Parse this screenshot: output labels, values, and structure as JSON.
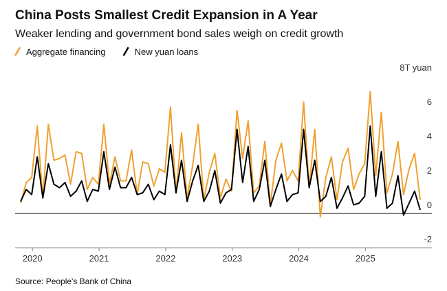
{
  "chart_data": {
    "type": "line",
    "title": "China Posts Smallest Credit Expansion in A Year",
    "subtitle": "Weaker lending and government bond sales weigh on credit growth",
    "source": "Source: People's Bank of China",
    "categories": [
      null,
      null,
      null,
      "2020",
      null,
      null,
      null,
      null,
      null,
      null,
      null,
      null,
      null,
      null,
      null,
      "2021",
      null,
      null,
      null,
      null,
      null,
      null,
      null,
      null,
      null,
      null,
      null,
      "2022",
      null,
      null,
      null,
      null,
      null,
      null,
      null,
      null,
      null,
      null,
      null,
      "2023",
      null,
      null,
      null,
      null,
      null,
      null,
      null,
      null,
      null,
      null,
      null,
      "2024",
      null,
      null,
      null,
      null,
      null,
      null,
      null,
      null,
      null,
      null,
      null,
      "2025",
      null,
      null,
      null,
      null,
      null,
      null,
      null,
      null,
      null
    ],
    "series": [
      {
        "name": "Aggregate financing",
        "color": "#f0a030",
        "values": [
          0.6,
          1.8,
          2.1,
          5.1,
          0.9,
          5.2,
          3.1,
          3.2,
          3.4,
          1.7,
          3.6,
          3.5,
          1.4,
          2.1,
          1.7,
          5.2,
          1.7,
          3.3,
          1.9,
          1.9,
          3.7,
          1.1,
          3.0,
          2.9,
          1.6,
          2.6,
          2.4,
          6.2,
          1.2,
          4.7,
          0.9,
          2.8,
          5.2,
          0.8,
          2.4,
          3.5,
          0.9,
          2.0,
          1.3,
          6.0,
          3.2,
          5.4,
          1.2,
          1.6,
          4.2,
          0.5,
          3.1,
          4.1,
          1.9,
          2.5,
          1.9,
          6.5,
          1.5,
          4.9,
          -0.2,
          2.1,
          3.3,
          0.8,
          3.0,
          3.8,
          1.4,
          2.3,
          2.9,
          7.1,
          2.2,
          5.9,
          1.2,
          2.3,
          4.2,
          1.1,
          2.6,
          3.5,
          0.8
        ]
      },
      {
        "name": "New yuan loans",
        "color": "#000000",
        "values": [
          0.7,
          1.4,
          1.1,
          3.3,
          0.9,
          2.9,
          1.7,
          1.5,
          1.8,
          1.0,
          1.3,
          1.9,
          0.7,
          1.4,
          1.3,
          3.6,
          1.4,
          2.7,
          1.5,
          1.5,
          2.1,
          1.1,
          1.2,
          1.7,
          0.8,
          1.3,
          1.1,
          4.0,
          1.2,
          3.1,
          0.7,
          1.9,
          2.8,
          0.7,
          1.3,
          2.5,
          0.6,
          1.2,
          1.4,
          4.9,
          1.8,
          3.9,
          0.7,
          1.4,
          3.1,
          0.4,
          1.4,
          2.3,
          0.7,
          1.1,
          1.2,
          4.9,
          1.5,
          3.1,
          0.7,
          1.0,
          2.1,
          0.3,
          0.9,
          1.6,
          0.5,
          0.6,
          1.0,
          5.1,
          1.0,
          3.6,
          0.3,
          0.6,
          2.2,
          -0.1,
          0.6,
          1.3,
          0.2
        ]
      }
    ],
    "ylim": [
      -2,
      8
    ],
    "yticks": [
      -2,
      0,
      2,
      4,
      6,
      {
        "value": 8,
        "label": "8T yuan"
      }
    ]
  }
}
